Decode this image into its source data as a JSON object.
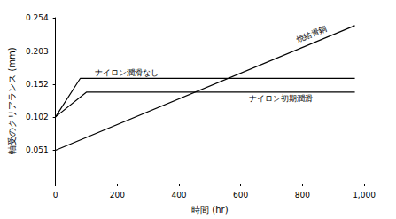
{
  "chart_data": {
    "type": "line",
    "x_label": "時間 (hr)",
    "y_label": "軸受のクリアランス (mm)",
    "xlim": [
      0,
      1000
    ],
    "xticks": [
      0,
      200,
      400,
      600,
      800,
      1000
    ],
    "ylim": [
      0,
      0.254
    ],
    "yticks": [
      0.051,
      0.102,
      0.152,
      0.203,
      0.254
    ],
    "grid": false,
    "series": [
      {
        "name": "焼結青銅",
        "color": "#000000",
        "x": [
          0,
          970
        ],
        "values": [
          0.051,
          0.242
        ]
      },
      {
        "name": "ナイロン潤滑なし",
        "color": "#000000",
        "x": [
          0,
          80,
          970
        ],
        "values": [
          0.102,
          0.161,
          0.161
        ]
      },
      {
        "name": "ナイロン初期潤滑",
        "color": "#000000",
        "x": [
          0,
          100,
          970
        ],
        "values": [
          0.102,
          0.14,
          0.14
        ]
      }
    ]
  }
}
